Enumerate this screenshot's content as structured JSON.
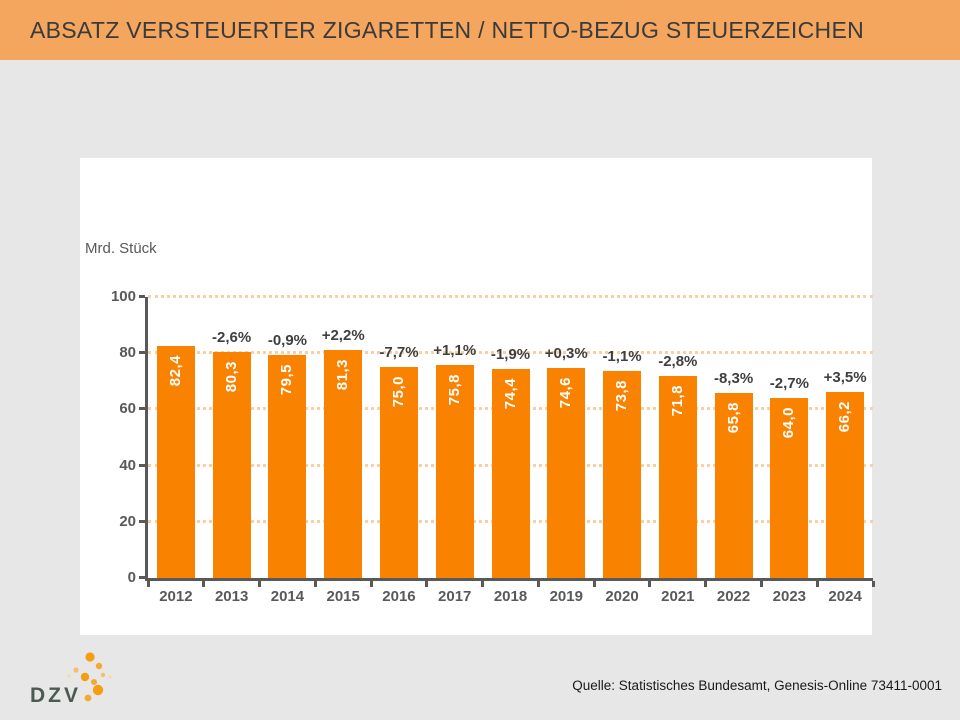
{
  "header": {
    "title": "ABSATZ VERSTEUERTER ZIGARETTEN / NETTO-BEZUG STEUERZEICHEN"
  },
  "chart_data": {
    "type": "bar",
    "title": "Absatz versteuerter Zigaretten / Netto-Bezug Steuerzeichen",
    "ylabel": "Mrd. Stück",
    "xlabel": "",
    "categories": [
      "2012",
      "2013",
      "2014",
      "2015",
      "2016",
      "2017",
      "2018",
      "2019",
      "2020",
      "2021",
      "2022",
      "2023",
      "2024"
    ],
    "values": [
      82.4,
      80.3,
      79.5,
      81.3,
      75.0,
      75.8,
      74.4,
      74.6,
      73.8,
      71.8,
      65.8,
      64.0,
      66.2
    ],
    "value_labels": [
      "82,4",
      "80,3",
      "79,5",
      "81,3",
      "75,0",
      "75,8",
      "74,4",
      "74,6",
      "73,8",
      "71,8",
      "65,8",
      "64,0",
      "66,2"
    ],
    "pct_changes": [
      null,
      "-2,6%",
      "-0,9%",
      "+2,2%",
      "-7,7%",
      "+1,1%",
      "-1,9%",
      "+0,3%",
      "-1,1%",
      "-2,8%",
      "-8,3%",
      "-2,7%",
      "+3,5%"
    ],
    "ylim": [
      0,
      100
    ],
    "yticks": [
      0,
      20,
      40,
      60,
      80,
      100
    ],
    "grid": "horizontal dotted",
    "legend": "none",
    "bar_color": "#F98200"
  },
  "footer": {
    "logo_text": "DZV",
    "source": "Quelle: Statistisches Bundesamt, Genesis-Online 73411-0001"
  },
  "colors": {
    "header_bg": "#F4A55E",
    "bar": "#F98200",
    "page_bg": "#E7E7E7",
    "panel_bg": "#FFFFFF",
    "axis": "#595959",
    "grid_dot": "#F9D0A1",
    "pct_text": "#3F3F3F",
    "bar_value_text": "#FFFFFF",
    "logo_text": "#4C5A52"
  }
}
